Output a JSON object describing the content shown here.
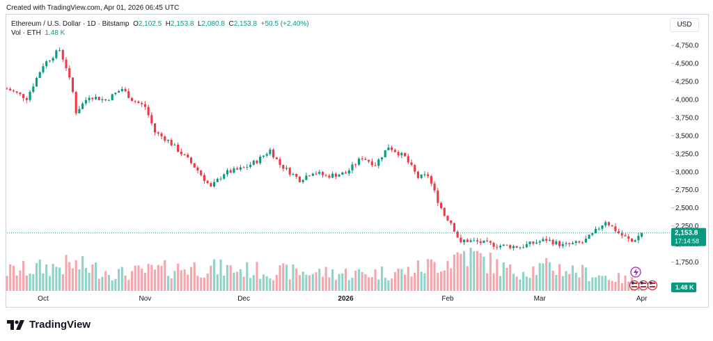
{
  "header": {
    "caption": "Created with TradingView.com, Apr 01, 2026 06:45 UTC",
    "symbol": "Ethereum / U.S. Dollar · 1D · Bitstamp",
    "open_label": "O",
    "open": "2,102.5",
    "high_label": "H",
    "high": "2,153.8",
    "low_label": "L",
    "low": "2,080.8",
    "close_label": "C",
    "close": "2,153.8",
    "change": "+50.5 (+2.40%)",
    "volume_label": "Vol · ETH",
    "volume_value": "1.48 K"
  },
  "currency": "USD",
  "brand": "TradingView",
  "colors": {
    "up": "#089981",
    "down": "#f23645",
    "vol_up": "#8fd3c8",
    "vol_down": "#f5a6ad",
    "price_line": "#089981"
  },
  "chart_data": {
    "type": "candlestick",
    "price_axis": {
      "ticks": [
        "1,750.0",
        "2,000.0",
        "2,250.0",
        "2,500.0",
        "2,750.0",
        "3,000.0",
        "3,250.0",
        "3,500.0",
        "3,750.0",
        "4,000.0",
        "4,250.0",
        "4,500.0",
        "4,750.0"
      ],
      "range": [
        1620,
        4800
      ]
    },
    "time_axis": {
      "labels": [
        "Oct",
        "Nov",
        "Dec",
        "2026",
        "Feb",
        "Mar",
        "Apr"
      ],
      "label_dates": [
        "2025-10-01",
        "2025-11-01",
        "2025-12-01",
        "2026-01-01",
        "2026-02-01",
        "2026-03-01",
        "2026-04-01"
      ],
      "range": [
        "2025-09-20",
        "2026-04-07"
      ]
    },
    "current_price": {
      "value": 2153.8,
      "label": "2,153.8",
      "countdown": "17:14:58"
    },
    "current_volume_label": "1.48 K",
    "close_series": {
      "anchor_dates": [
        "2025-09-20",
        "2025-09-26",
        "2025-10-01",
        "2025-10-06",
        "2025-10-08",
        "2025-10-10",
        "2025-10-11",
        "2025-10-15",
        "2025-10-20",
        "2025-10-25",
        "2025-10-28",
        "2025-11-01",
        "2025-11-04",
        "2025-11-08",
        "2025-11-14",
        "2025-11-17",
        "2025-11-21",
        "2025-11-25",
        "2025-12-01",
        "2025-12-05",
        "2025-12-09",
        "2025-12-12",
        "2025-12-18",
        "2025-12-22",
        "2025-12-26",
        "2026-01-01",
        "2026-01-06",
        "2026-01-10",
        "2026-01-14",
        "2026-01-19",
        "2026-01-23",
        "2026-01-26",
        "2026-01-29",
        "2026-01-31",
        "2026-02-02",
        "2026-02-05",
        "2026-02-06",
        "2026-02-10",
        "2026-02-16",
        "2026-02-23",
        "2026-02-26",
        "2026-03-03",
        "2026-03-08",
        "2026-03-14",
        "2026-03-17",
        "2026-03-21",
        "2026-03-25",
        "2026-03-29",
        "2026-04-01"
      ],
      "anchor_closes": [
        4150,
        4020,
        4480,
        4690,
        4450,
        4100,
        3830,
        4050,
        3990,
        4150,
        4000,
        3900,
        3550,
        3430,
        3170,
        3020,
        2780,
        2980,
        3050,
        3150,
        3300,
        3100,
        2890,
        3000,
        2940,
        2980,
        3200,
        3100,
        3350,
        3200,
        2920,
        2950,
        2600,
        2400,
        2300,
        2000,
        2050,
        2030,
        1980,
        1960,
        2000,
        2060,
        1980,
        2020,
        2130,
        2320,
        2150,
        2030,
        2154
      ]
    },
    "volume_series": {
      "anchor_dates": [
        "2025-09-20",
        "2025-10-10",
        "2025-10-25",
        "2025-11-15",
        "2025-12-10",
        "2026-01-05",
        "2026-01-20",
        "2026-02-01",
        "2026-02-06",
        "2026-02-20",
        "2026-03-05",
        "2026-03-20",
        "2026-04-01"
      ],
      "anchor_levels": [
        0.45,
        0.6,
        0.4,
        0.55,
        0.45,
        0.4,
        0.45,
        0.7,
        0.9,
        0.45,
        0.55,
        0.35,
        0.2
      ]
    }
  }
}
